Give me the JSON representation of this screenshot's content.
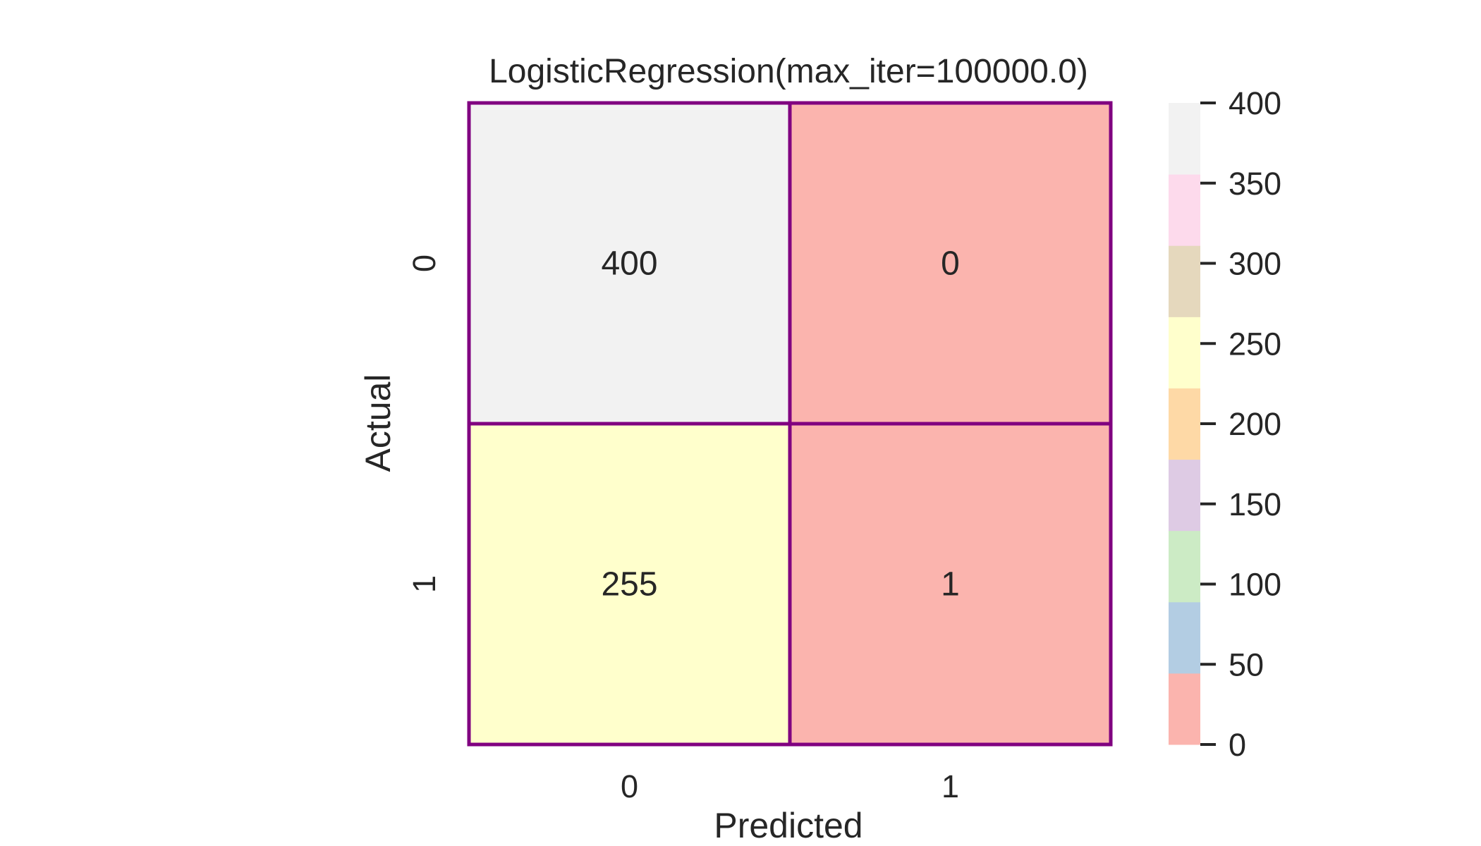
{
  "chart_data": {
    "type": "heatmap",
    "title": "LogisticRegression(max_iter=100000.0)",
    "xlabel": "Predicted",
    "ylabel": "Actual",
    "x_categories": [
      "0",
      "1"
    ],
    "y_categories": [
      "0",
      "1"
    ],
    "values": [
      [
        400,
        0
      ],
      [
        255,
        1
      ]
    ],
    "annotations": [
      [
        "400",
        "0"
      ],
      [
        "255",
        "1"
      ]
    ],
    "colorbar": {
      "range": [
        0,
        400
      ],
      "ticks": [
        0,
        50,
        100,
        150,
        200,
        250,
        300,
        350,
        400
      ],
      "tick_labels": [
        "0",
        "50",
        "100",
        "150",
        "200",
        "250",
        "300",
        "350",
        "400"
      ],
      "colors": [
        "#fbb4ae",
        "#b3cde3",
        "#ccebc5",
        "#decbe4",
        "#fed9a6",
        "#ffffcc",
        "#e5d8bd",
        "#fddaec",
        "#f2f2f2"
      ]
    },
    "cell_border_color": "#800080",
    "text_color": "#262626"
  }
}
